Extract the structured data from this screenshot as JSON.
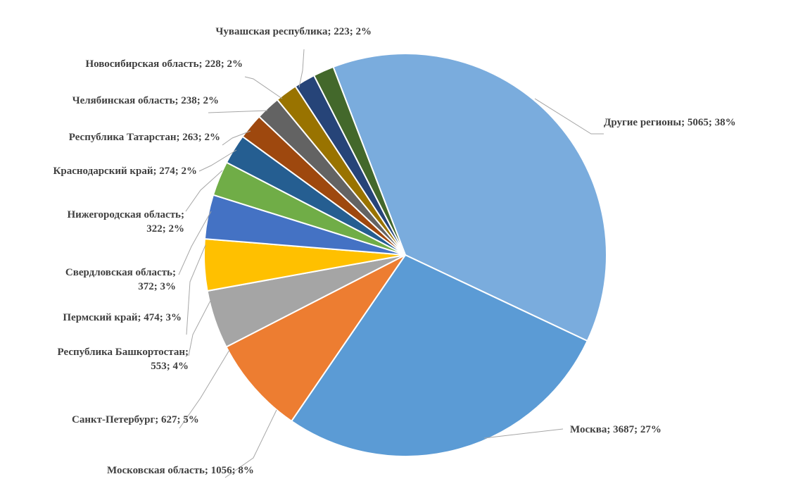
{
  "chart_data": {
    "type": "pie",
    "title": "",
    "start_angle_deg": 339,
    "series": [
      {
        "name": "",
        "slices": [
          {
            "label": "Другие регионы",
            "value": 5065,
            "percent": "38%",
            "color": "#7aacdd"
          },
          {
            "label": "Москва",
            "value": 3687,
            "percent": "27%",
            "color": "#5b9bd5"
          },
          {
            "label": "Московская область",
            "value": 1056,
            "percent": "8%",
            "color": "#ed7d31"
          },
          {
            "label": "Санкт-Петербург",
            "value": 627,
            "percent": "5%",
            "color": "#a5a5a5"
          },
          {
            "label": "Республика Башкортостан",
            "value": 553,
            "percent": "4%",
            "color": "#ffc000"
          },
          {
            "label": "Пермский край",
            "value": 474,
            "percent": "3%",
            "color": "#4472c4"
          },
          {
            "label": "Свердловская область",
            "value": 372,
            "percent": "3%",
            "color": "#70ad47"
          },
          {
            "label": "Нижегородская область",
            "value": 322,
            "percent": "2%",
            "color": "#255e91"
          },
          {
            "label": "Краснодарский край",
            "value": 274,
            "percent": "2%",
            "color": "#9e480e"
          },
          {
            "label": "Республика Татарстан",
            "value": 263,
            "percent": "2%",
            "color": "#636363"
          },
          {
            "label": "Челябинская область",
            "value": 238,
            "percent": "2%",
            "color": "#997300"
          },
          {
            "label": "Новосибирская область",
            "value": 228,
            "percent": "2%",
            "color": "#264478"
          },
          {
            "label": "Чувашская республика",
            "value": 223,
            "percent": "2%",
            "color": "#43682b"
          }
        ]
      }
    ],
    "label_text": [
      [
        "Другие регионы; 5065; 38%"
      ],
      [
        "Москва; 3687; 27%"
      ],
      [
        "Московская область; 1056; 8%"
      ],
      [
        "Санкт-Петербург; 627; 5%"
      ],
      [
        "Республика Башкортостан;",
        "553; 4%"
      ],
      [
        "Пермский край; 474; 3%"
      ],
      [
        "Свердловская область;",
        "372; 3%"
      ],
      [
        "Нижегородская область;",
        "322; 2%"
      ],
      [
        "Краснодарский край; 274; 2%"
      ],
      [
        "Республика Татарстан; 263; 2%"
      ],
      [
        "Челябинская область; 238; 2%"
      ],
      [
        "Новосибирская область; 228; 2%"
      ],
      [
        "Чувашская республика; 223; 2%"
      ]
    ]
  }
}
